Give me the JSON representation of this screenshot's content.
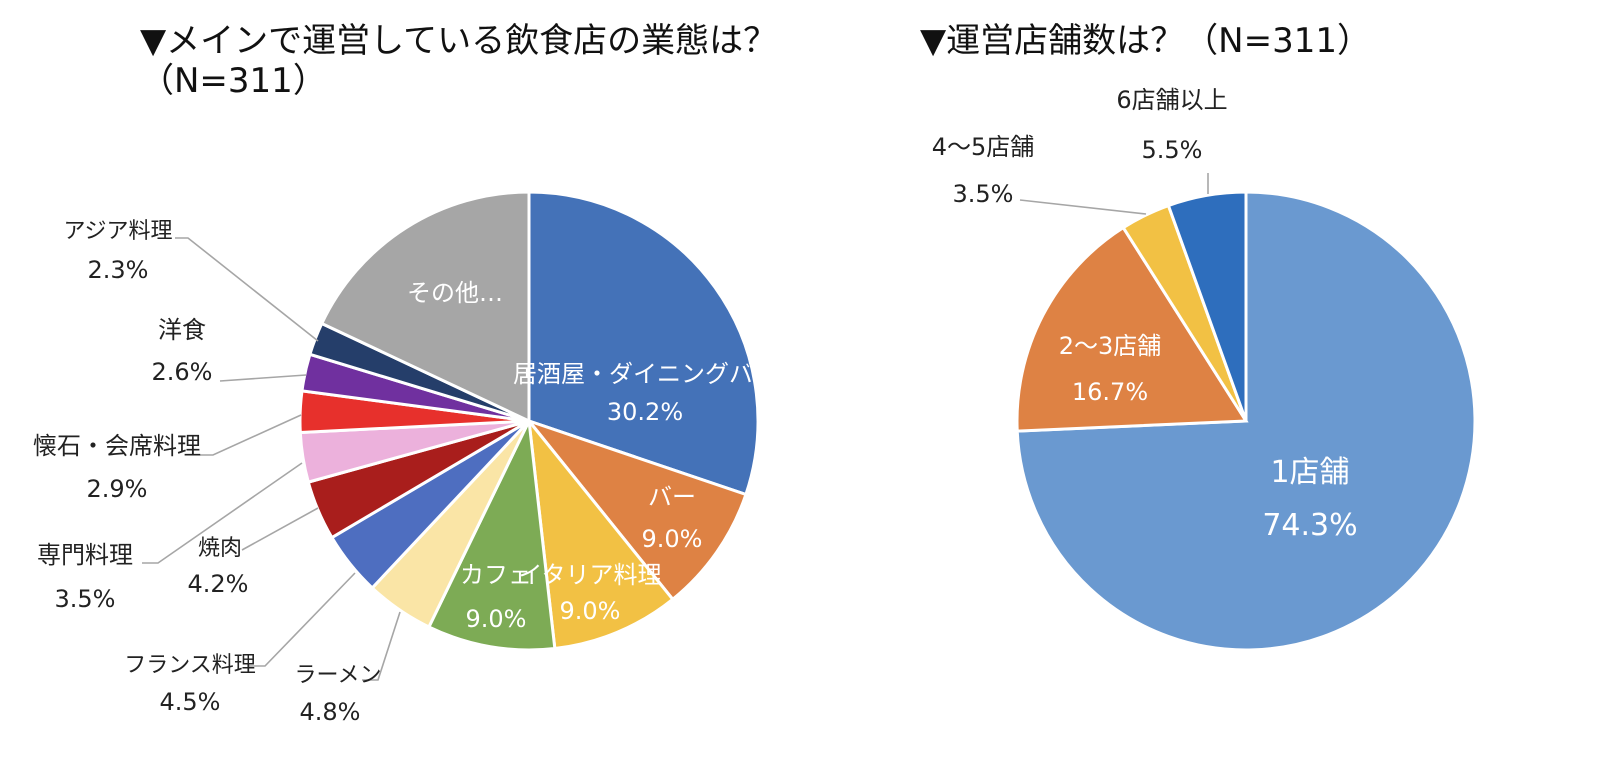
{
  "chart_data": [
    {
      "type": "pie",
      "title": "▼メインで運営している飲食店の業態は？",
      "subtitle": "（N=311）",
      "start": "12 o'clock, clockwise",
      "slices": [
        {
          "label": "居酒屋・ダイニングバー",
          "value": 30.2,
          "value_label": "30.2%",
          "color": "#4472b8"
        },
        {
          "label": "バー",
          "value": 9.0,
          "value_label": "9.0%",
          "color": "#de8244"
        },
        {
          "label": "イタリア料理",
          "value": 9.0,
          "value_label": "9.0%",
          "color": "#f2c144"
        },
        {
          "label": "カフェ",
          "value": 9.0,
          "value_label": "9.0%",
          "color": "#7dab55"
        },
        {
          "label": "ラーメン",
          "value": 4.8,
          "value_label": "4.8%",
          "color": "#fae5a6"
        },
        {
          "label": "フランス料理",
          "value": 4.5,
          "value_label": "4.5%",
          "color": "#4e6ec0"
        },
        {
          "label": "焼肉",
          "value": 4.2,
          "value_label": "4.2%",
          "color": "#a91e1c"
        },
        {
          "label": "専門料理",
          "value": 3.5,
          "value_label": "3.5%",
          "color": "#ecb1dc"
        },
        {
          "label": "懐石・会席料理",
          "value": 2.9,
          "value_label": "2.9%",
          "color": "#e7302c"
        },
        {
          "label": "洋食",
          "value": 2.6,
          "value_label": "2.6%",
          "color": "#70309f"
        },
        {
          "label": "アジア料理",
          "value": 2.3,
          "value_label": "2.3%",
          "color": "#253e6a"
        },
        {
          "label": "その他…",
          "value": 18.0,
          "value_label": "",
          "color": "#a6a6a6"
        }
      ]
    },
    {
      "type": "pie",
      "title": "▼運営店舗数は？（N=311）",
      "start": "12 o'clock, clockwise",
      "slices": [
        {
          "label": "1店舗",
          "value": 74.3,
          "value_label": "74.3%",
          "color": "#6a99d0"
        },
        {
          "label": "2～3店舗",
          "value": 16.7,
          "value_label": "16.7%",
          "color": "#de8244"
        },
        {
          "label": "4～5店舗",
          "value": 3.5,
          "value_label": "3.5%",
          "color": "#f2c144"
        },
        {
          "label": "6店舗以上",
          "value": 5.5,
          "value_label": "5.5%",
          "color": "#2e6ebd"
        }
      ]
    }
  ]
}
